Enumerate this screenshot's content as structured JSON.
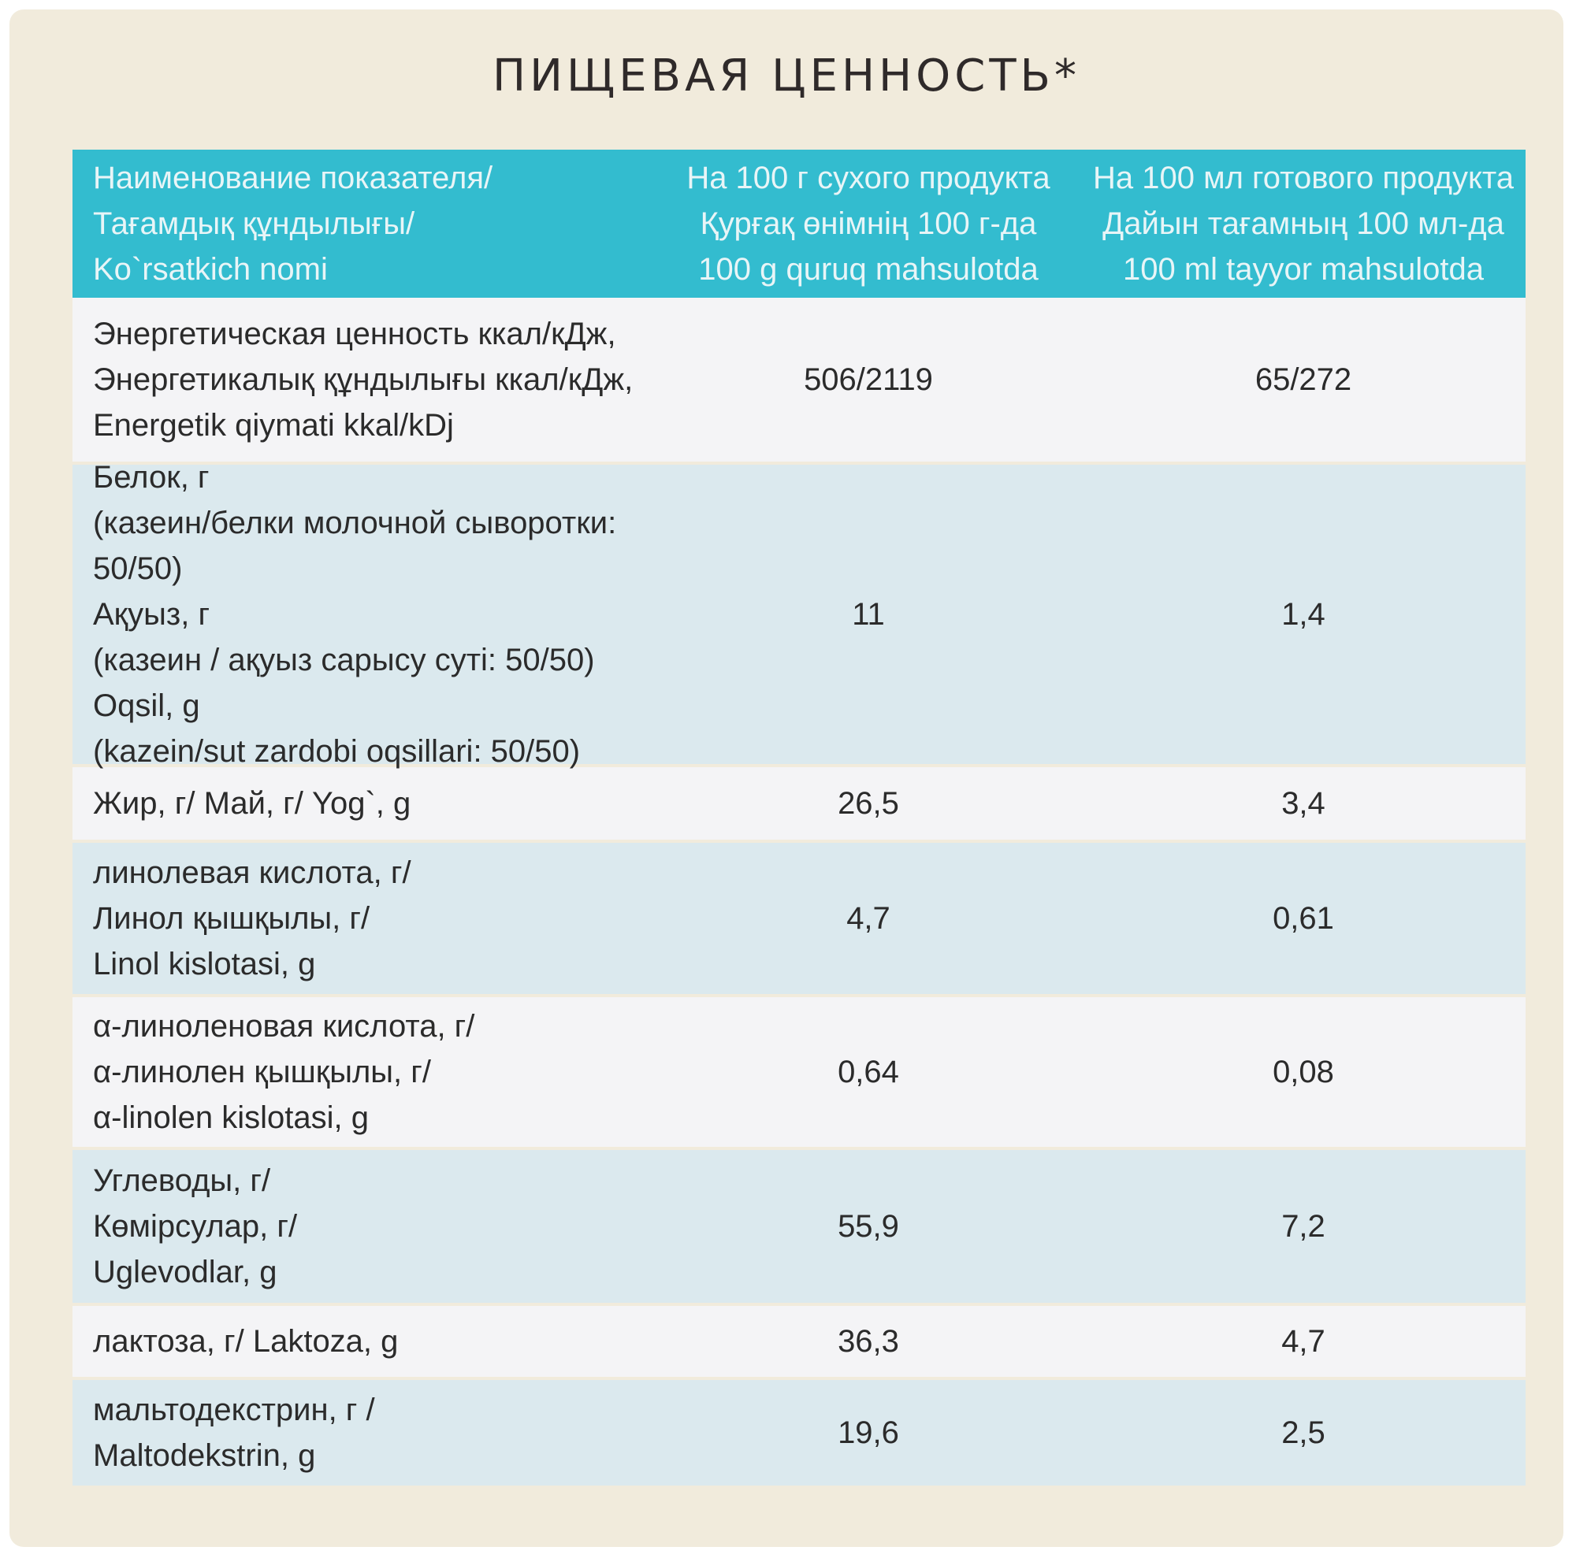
{
  "title": "ПИЩЕВАЯ ЦЕННОСТЬ*",
  "header": {
    "col1": "Наименование показателя/\nТағамдық құндылығы/\nKo`rsatkich nomi",
    "col2": "На 100 г сухого  продукта\nҚурғақ өнімнің 100 г-да\n100 g quruq mahsulotda",
    "col3": "На 100 мл готового  продукта\nДайын тағамның 100 мл-да\n100 ml tayyor mahsulotda"
  },
  "rows": [
    {
      "label": "Энергетическая  ценность ккал/кДж,\nЭнергетикалық құндылығы ккал/кДж,\nEnergetik qiymati kkal/kDj",
      "dry": "506/2119",
      "ready": "65/272"
    },
    {
      "label": "Белок, г\n(казеин/белки молочной сыворотки: 50/50)\nАқуыз, г\n(казеин / ақуыз сарысу суті: 50/50)\nOqsil, g\n(kazein/sut zardobi oqsillari: 50/50)",
      "dry": "11",
      "ready": "1,4"
    },
    {
      "label": "Жир, г/ Май, г/ Yog`, g",
      "dry": "26,5",
      "ready": "3,4"
    },
    {
      "label": "линолевая кислота, г/\nЛинол қышқылы, г/\nLinol kislotasi, g",
      "dry": "4,7",
      "ready": "0,61"
    },
    {
      "label": "α-линоленовая кислота, г/\nα-линолен қышқылы, г/\nα-linolen kislotasi, g",
      "dry": "0,64",
      "ready": "0,08"
    },
    {
      "label": "Углеводы, г/\nКөмірсулар, г/\nUglevodlar, g",
      "dry": "55,9",
      "ready": "7,2"
    },
    {
      "label": "лактоза, г/ Laktoza, g",
      "dry": "36,3",
      "ready": "4,7"
    },
    {
      "label": "мальтодекстрин, г /\nMaltodekstrin, g",
      "dry": "19,6",
      "ready": "2,5"
    }
  ]
}
